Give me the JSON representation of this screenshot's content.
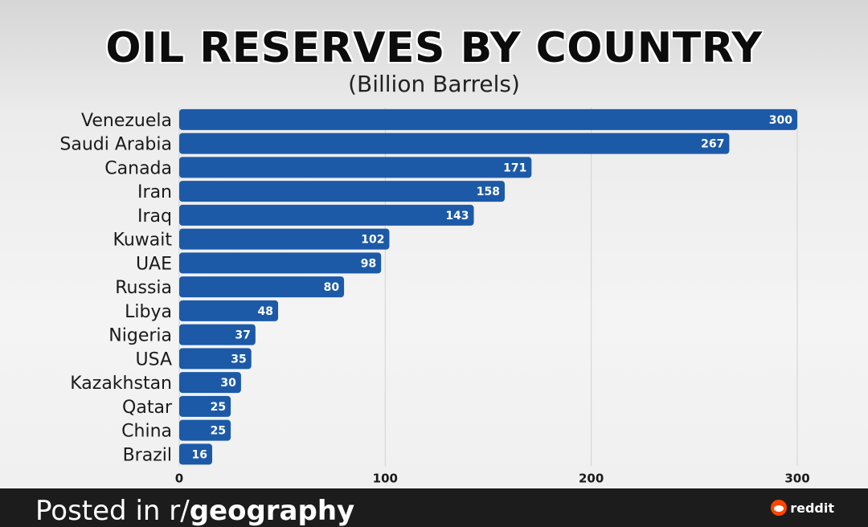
{
  "chart_data": {
    "type": "bar",
    "orientation": "horizontal",
    "title": "OIL RESERVES BY COUNTRY",
    "subtitle": "(Billion Barrels)",
    "categories": [
      "Venezuela",
      "Saudi Arabia",
      "Canada",
      "Iran",
      "Iraq",
      "Kuwait",
      "UAE",
      "Russia",
      "Libya",
      "Nigeria",
      "USA",
      "Kazakhstan",
      "Qatar",
      "China",
      "Brazil"
    ],
    "values": [
      300,
      267,
      171,
      158,
      143,
      102,
      98,
      80,
      48,
      37,
      35,
      30,
      25,
      25,
      16
    ],
    "xticks": [
      0,
      100,
      200,
      300
    ],
    "xlim": [
      0,
      300
    ],
    "grid": true,
    "bar_color": "#1c5aa8",
    "data_labels": true
  },
  "footer": {
    "prefix": "Posted in r/",
    "subreddit": "geography",
    "brand": "reddit",
    "brand_color": "#ff4500"
  },
  "icons": {
    "brand_icon": "reddit-alien-icon"
  }
}
